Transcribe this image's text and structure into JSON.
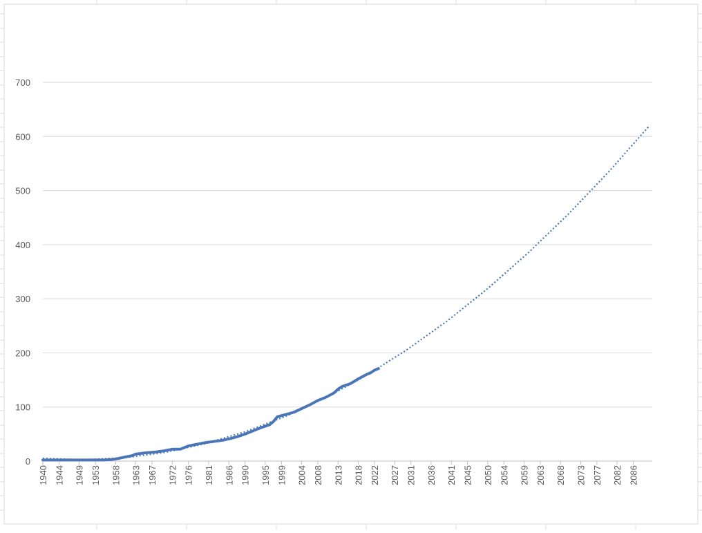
{
  "chart_data": {
    "type": "line",
    "series": [
      {
        "color": "#4a76b8",
        "style": "solid",
        "x": [
          1940,
          1945,
          1950,
          1955,
          1957,
          1958,
          1960,
          1962,
          1963,
          1965,
          1968,
          1970,
          1972,
          1974,
          1975,
          1976,
          1978,
          1980,
          1982,
          1984,
          1986,
          1988,
          1990,
          1992,
          1994,
          1996,
          1997,
          1998,
          2000,
          2002,
          2004,
          2006,
          2008,
          2010,
          2012,
          2013,
          2014,
          2016,
          2018,
          2020,
          2021,
          2022,
          2023
        ],
        "values": [
          2,
          2,
          2,
          2,
          3,
          4,
          7,
          10,
          13,
          15,
          17,
          19,
          22,
          22,
          25,
          28,
          31,
          34,
          36,
          38,
          41,
          45,
          50,
          56,
          62,
          67,
          73,
          82,
          86,
          90,
          97,
          104,
          112,
          118,
          126,
          133,
          138,
          143,
          152,
          160,
          163,
          168,
          171
        ]
      },
      {
        "color": "#4a76b8",
        "style": "dotted",
        "x": [
          1940,
          1950,
          1960,
          1970,
          1980,
          1990,
          2000,
          2010,
          2020,
          2030,
          2040,
          2050,
          2060,
          2070,
          2080,
          2090
        ],
        "values": [
          5,
          2.4,
          6,
          15.8,
          31.9,
          54.2,
          82.7,
          117.4,
          158.4,
          205.6,
          259.1,
          318.8,
          384.7,
          456.8,
          535.2,
          619.9
        ]
      }
    ],
    "xlim": [
      1940,
      2090
    ],
    "xticks": [
      1940,
      1944,
      1949,
      1953,
      1958,
      1963,
      1967,
      1972,
      1976,
      1981,
      1986,
      1990,
      1995,
      1999,
      2004,
      2008,
      2013,
      2018,
      2022,
      2027,
      2031,
      2036,
      2041,
      2045,
      2050,
      2054,
      2059,
      2063,
      2068,
      2073,
      2077,
      2082,
      2086
    ],
    "ylim": [
      0,
      700
    ],
    "yticks": [
      0,
      100,
      200,
      300,
      400,
      500,
      600,
      700
    ],
    "grid": true
  }
}
